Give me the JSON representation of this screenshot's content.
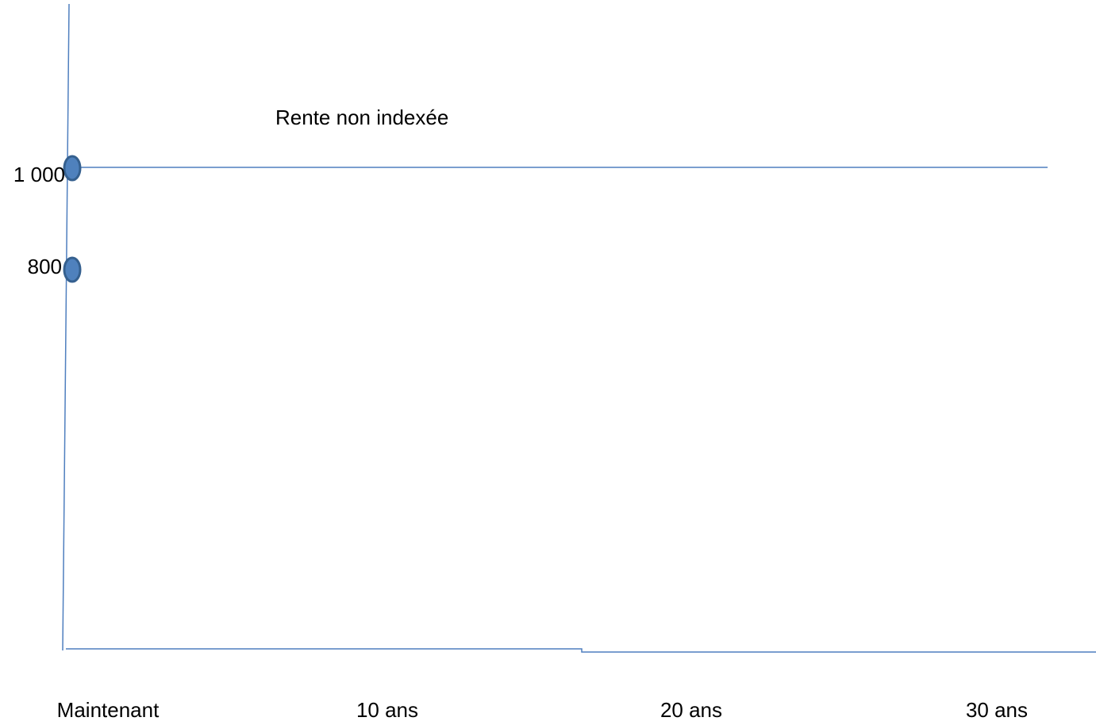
{
  "annotation": "Rente non indexée",
  "y_labels": [
    "1 000",
    "800"
  ],
  "x_labels": [
    "Maintenant",
    "10 ans",
    "20 ans",
    "30 ans"
  ]
}
